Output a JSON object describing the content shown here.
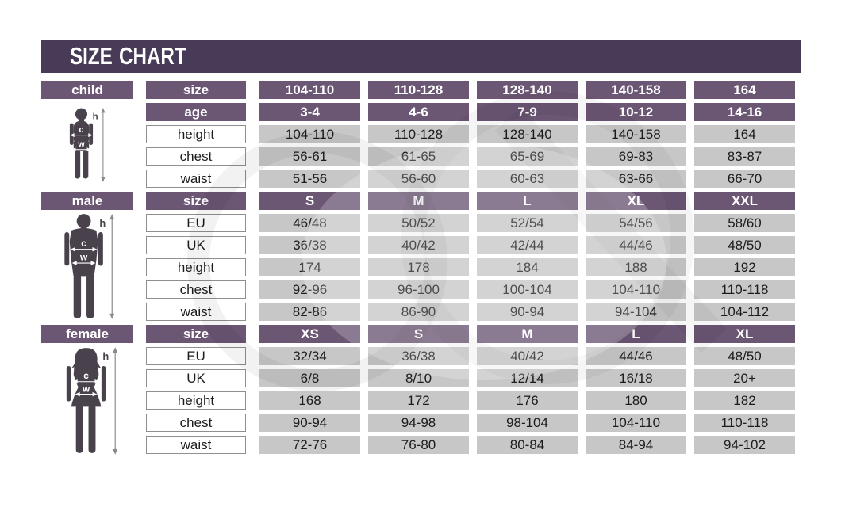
{
  "title": "SIZE CHART",
  "colors": {
    "title_bg": "#473b57",
    "header_bg": "#6b5674",
    "cell_bg": "#c8c7c7",
    "silhouette": "#49424c"
  },
  "figure_labels": {
    "height": "h",
    "chest": "c",
    "waist": "w"
  },
  "chart_data": {
    "type": "table",
    "title": "SIZE CHART",
    "tables": [
      {
        "name": "child",
        "header_rows": [
          {
            "label": "size",
            "values": [
              "104-110",
              "110-128",
              "128-140",
              "140-158",
              "164"
            ]
          },
          {
            "label": "age",
            "values": [
              "3-4",
              "4-6",
              "7-9",
              "10-12",
              "14-16"
            ]
          }
        ],
        "rows": [
          {
            "label": "height",
            "values": [
              "104-110",
              "110-128",
              "128-140",
              "140-158",
              "164"
            ]
          },
          {
            "label": "chest",
            "values": [
              "56-61",
              "61-65",
              "65-69",
              "69-83",
              "83-87"
            ]
          },
          {
            "label": "waist",
            "values": [
              "51-56",
              "56-60",
              "60-63",
              "63-66",
              "66-70"
            ]
          }
        ]
      },
      {
        "name": "male",
        "header_rows": [
          {
            "label": "size",
            "values": [
              "S",
              "M",
              "L",
              "XL",
              "XXL"
            ]
          }
        ],
        "rows": [
          {
            "label": "EU",
            "values": [
              "46/48",
              "50/52",
              "52/54",
              "54/56",
              "58/60"
            ]
          },
          {
            "label": "UK",
            "values": [
              "36/38",
              "40/42",
              "42/44",
              "44/46",
              "48/50"
            ]
          },
          {
            "label": "height",
            "values": [
              "174",
              "178",
              "184",
              "188",
              "192"
            ]
          },
          {
            "label": "chest",
            "values": [
              "92-96",
              "96-100",
              "100-104",
              "104-110",
              "110-118"
            ]
          },
          {
            "label": "waist",
            "values": [
              "82-86",
              "86-90",
              "90-94",
              "94-104",
              "104-112"
            ]
          }
        ]
      },
      {
        "name": "female",
        "header_rows": [
          {
            "label": "size",
            "values": [
              "XS",
              "S",
              "M",
              "L",
              "XL"
            ]
          }
        ],
        "rows": [
          {
            "label": "EU",
            "values": [
              "32/34",
              "36/38",
              "40/42",
              "44/46",
              "48/50"
            ]
          },
          {
            "label": "UK",
            "values": [
              "6/8",
              "8/10",
              "12/14",
              "16/18",
              "20+"
            ]
          },
          {
            "label": "height",
            "values": [
              "168",
              "172",
              "176",
              "180",
              "182"
            ]
          },
          {
            "label": "chest",
            "values": [
              "90-94",
              "94-98",
              "98-104",
              "104-110",
              "110-118"
            ]
          },
          {
            "label": "waist",
            "values": [
              "72-76",
              "76-80",
              "80-84",
              "84-94",
              "94-102"
            ]
          }
        ]
      }
    ]
  }
}
